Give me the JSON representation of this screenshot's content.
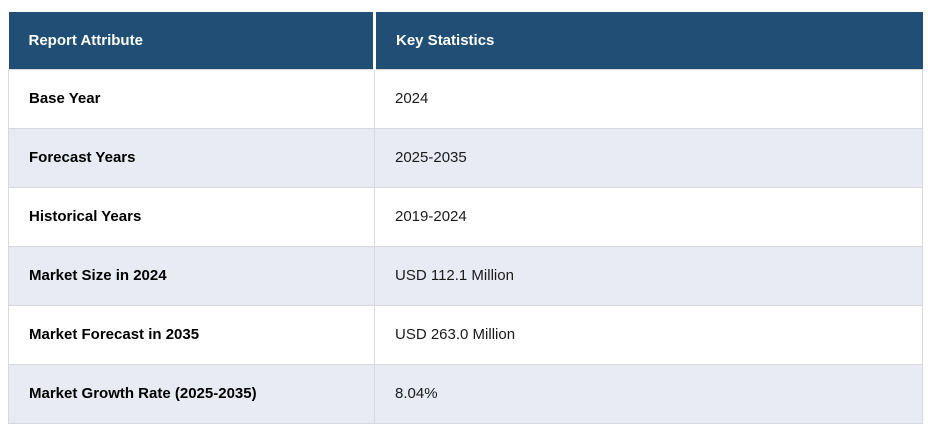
{
  "table": {
    "header": {
      "attribute_label": "Report Attribute",
      "statistics_label": "Key Statistics"
    },
    "rows": [
      {
        "attribute": "Base Year",
        "value": "2024"
      },
      {
        "attribute": "Forecast Years",
        "value": "2025-2035"
      },
      {
        "attribute": "Historical Years",
        "value": "2019-2024"
      },
      {
        "attribute": "Market Size in 2024",
        "value": "USD 112.1 Million"
      },
      {
        "attribute": "Market Forecast in 2035",
        "value": "USD 263.0 Million"
      },
      {
        "attribute": "Market Growth Rate (2025-2035)",
        "value": "8.04%"
      }
    ]
  },
  "colors": {
    "header_bg": "#204E74",
    "header_text": "#FFFFFF",
    "row_bg": "#FFFFFF",
    "row_alt_bg": "#E8EAF4",
    "border": "#D8D9DF"
  }
}
